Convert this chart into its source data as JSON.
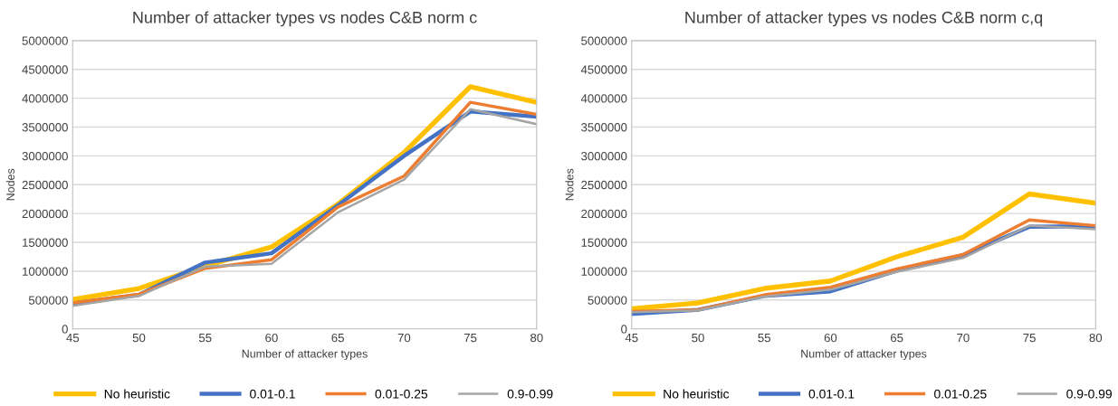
{
  "chart_data": [
    {
      "type": "line",
      "title": "Number of attacker types vs nodes C&B norm c",
      "xlabel": "Number of attacker types",
      "ylabel": "Nodes",
      "x": [
        45,
        50,
        55,
        60,
        65,
        70,
        75,
        80
      ],
      "xlim": [
        45,
        80
      ],
      "xticks": [
        45,
        50,
        55,
        60,
        65,
        70,
        75,
        80
      ],
      "ylim": [
        0,
        5000000
      ],
      "yticks": [
        0,
        500000,
        1000000,
        1500000,
        2000000,
        2500000,
        3000000,
        3500000,
        4000000,
        4500000,
        5000000
      ],
      "grid": "y",
      "legend": "bottom",
      "marker": "none",
      "line_style": "solid",
      "series": [
        {
          "name": "No heuristic",
          "color": "#ffc000",
          "values": [
            510000,
            700000,
            1090000,
            1420000,
            2160000,
            3060000,
            4200000,
            3930000
          ]
        },
        {
          "name": "0.01-0.1",
          "color": "#4472c4",
          "values": [
            440000,
            590000,
            1150000,
            1310000,
            2140000,
            3000000,
            3770000,
            3680000
          ]
        },
        {
          "name": "0.01-0.25",
          "color": "#ed7d31",
          "values": [
            450000,
            600000,
            1050000,
            1200000,
            2110000,
            2650000,
            3930000,
            3720000
          ]
        },
        {
          "name": "0.9-0.99",
          "color": "#a5a5a5",
          "values": [
            400000,
            570000,
            1080000,
            1130000,
            2020000,
            2590000,
            3810000,
            3550000
          ]
        }
      ]
    },
    {
      "type": "line",
      "title": "Number of attacker types vs nodes C&B norm c,q",
      "xlabel": "Number of attacker types",
      "ylabel": "Nodes",
      "x": [
        45,
        50,
        55,
        60,
        65,
        70,
        75,
        80
      ],
      "xlim": [
        45,
        80
      ],
      "xticks": [
        45,
        50,
        55,
        60,
        65,
        70,
        75,
        80
      ],
      "ylim": [
        0,
        5000000
      ],
      "yticks": [
        0,
        500000,
        1000000,
        1500000,
        2000000,
        2500000,
        3000000,
        3500000,
        4000000,
        4500000,
        5000000
      ],
      "grid": "y",
      "legend": "bottom",
      "marker": "none",
      "line_style": "solid",
      "series": [
        {
          "name": "No heuristic",
          "color": "#ffc000",
          "values": [
            350000,
            450000,
            700000,
            830000,
            1250000,
            1590000,
            2340000,
            2180000
          ]
        },
        {
          "name": "0.01-0.1",
          "color": "#4472c4",
          "values": [
            260000,
            330000,
            570000,
            650000,
            1010000,
            1280000,
            1770000,
            1780000
          ]
        },
        {
          "name": "0.01-0.25",
          "color": "#ed7d31",
          "values": [
            300000,
            330000,
            590000,
            720000,
            1040000,
            1290000,
            1890000,
            1790000
          ]
        },
        {
          "name": "0.9-0.99",
          "color": "#a5a5a5",
          "values": [
            290000,
            320000,
            560000,
            680000,
            990000,
            1230000,
            1790000,
            1730000
          ]
        }
      ]
    }
  ]
}
